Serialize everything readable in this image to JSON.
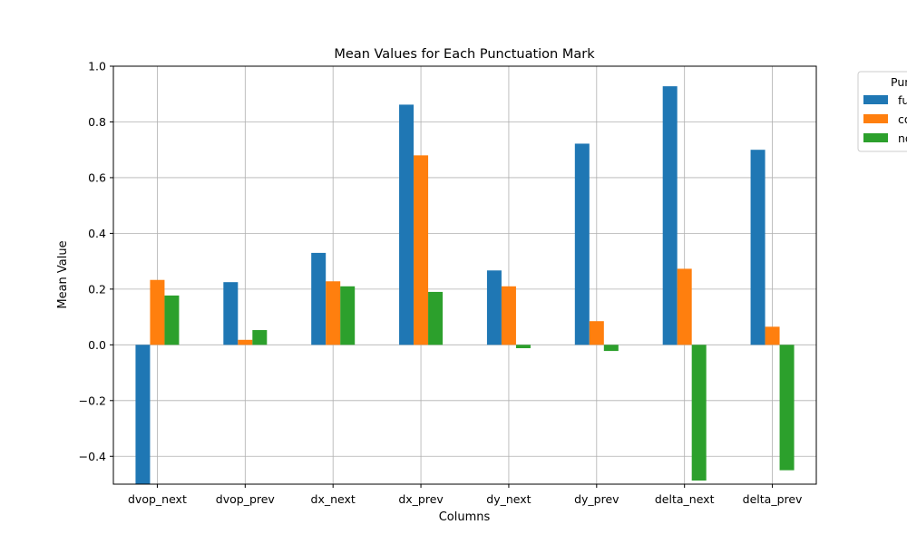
{
  "chart_data": {
    "type": "bar",
    "title": "Mean Values for Each Punctuation Mark",
    "xlabel": "Columns",
    "ylabel": "Mean Value",
    "ylim": [
      -0.5,
      1.0
    ],
    "yticks": [
      -0.4,
      -0.2,
      0.0,
      0.2,
      0.4,
      0.6,
      0.8,
      1.0
    ],
    "ytick_labels": [
      "−0.4",
      "−0.2",
      "0.0",
      "0.2",
      "0.4",
      "0.6",
      "0.8",
      "1.0"
    ],
    "grid": true,
    "legend_placement": "outside-top-right",
    "legend_title": "Pun",
    "categories": [
      "dvop_next",
      "dvop_prev",
      "dx_next",
      "dx_prev",
      "dy_next",
      "dy_prev",
      "delta_next",
      "delta_prev"
    ],
    "series": [
      {
        "name": "fu",
        "color": "#1f77b4",
        "values": [
          -0.5,
          0.225,
          0.33,
          0.862,
          0.267,
          0.722,
          0.928,
          0.7
        ]
      },
      {
        "name": "co",
        "color": "#ff7f0e",
        "values": [
          0.233,
          0.018,
          0.228,
          0.68,
          0.21,
          0.085,
          0.273,
          0.065
        ]
      },
      {
        "name": "no",
        "color": "#2ca02c",
        "values": [
          0.177,
          0.053,
          0.21,
          0.19,
          -0.012,
          -0.022,
          -0.487,
          -0.45
        ]
      }
    ]
  }
}
